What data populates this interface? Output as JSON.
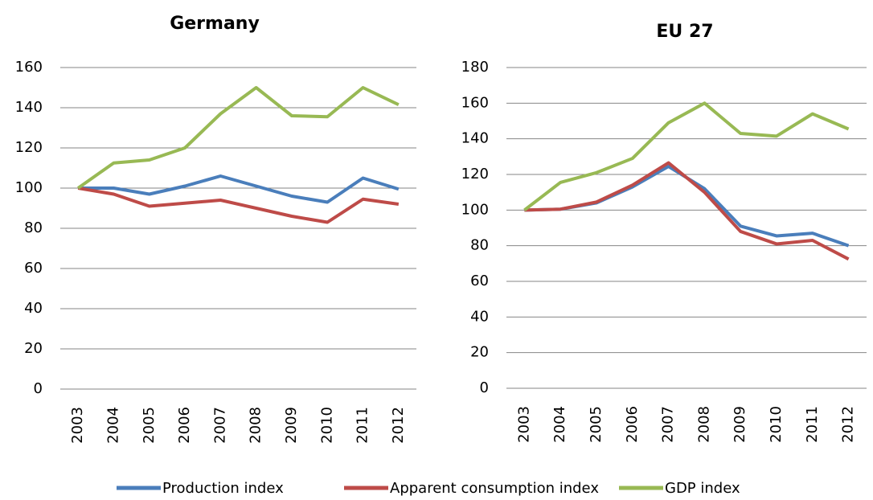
{
  "chart_data": [
    {
      "type": "line",
      "title": "Germany",
      "categories": [
        "2003",
        "2004",
        "2005",
        "2006",
        "2007",
        "2008",
        "2009",
        "2010",
        "2011",
        "2012"
      ],
      "series": [
        {
          "name": "Production index",
          "color": "#4a7ebb",
          "values": [
            100,
            100,
            97,
            101,
            106,
            101,
            96,
            93,
            105,
            99.5
          ]
        },
        {
          "name": "Apparent consumption index",
          "color": "#be4b48",
          "values": [
            100,
            97,
            91,
            92.5,
            94,
            90,
            86,
            83,
            94.5,
            92
          ]
        },
        {
          "name": "GDP index",
          "color": "#98b954",
          "values": [
            100,
            112.5,
            114,
            120,
            137,
            150,
            136,
            135.5,
            150,
            141.5
          ]
        }
      ],
      "ylim": [
        0,
        160
      ],
      "yticks": [
        0,
        20,
        40,
        60,
        80,
        100,
        120,
        140,
        160
      ],
      "grid": true
    },
    {
      "type": "line",
      "title": "EU 27",
      "categories": [
        "2003",
        "2004",
        "2005",
        "2006",
        "2007",
        "2008",
        "2009",
        "2010",
        "2011",
        "2012"
      ],
      "series": [
        {
          "color": "#4a7ebb",
          "values": [
            100,
            100.5,
            104,
            113,
            124.5,
            112,
            91,
            85.5,
            87,
            80
          ]
        },
        {
          "color": "#be4b48",
          "values": [
            100,
            100.5,
            104.5,
            114,
            126.5,
            110,
            88,
            81,
            83,
            72.5
          ]
        },
        {
          "color": "#98b954",
          "values": [
            100,
            115.5,
            121,
            129,
            149,
            160,
            143,
            141.5,
            154,
            145.5
          ]
        }
      ],
      "ylim": [
        0,
        180
      ],
      "yticks": [
        0,
        20,
        40,
        60,
        80,
        100,
        120,
        140,
        160,
        180
      ],
      "grid": true
    }
  ]
}
